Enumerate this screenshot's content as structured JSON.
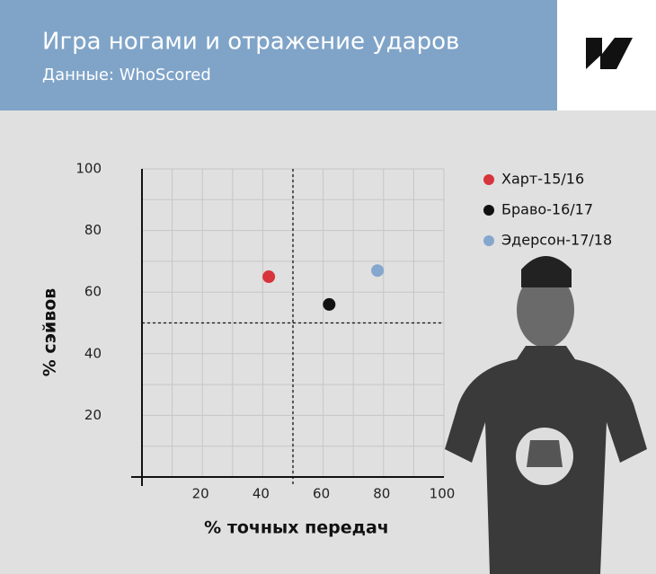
{
  "header": {
    "title": "Игра ногами и отражение ударов",
    "subtitle": "Данные: WhoScored"
  },
  "chart_data": {
    "type": "scatter",
    "x_label": "% точных передач",
    "y_label": "% сэйвов",
    "series": [
      {
        "name": "Харт-15/16",
        "color": "#d7343c",
        "x": [
          42
        ],
        "values": [
          65
        ]
      },
      {
        "name": "Браво-16/17",
        "color": "#111111",
        "x": [
          62
        ],
        "values": [
          56
        ]
      },
      {
        "name": "Эдерсон-17/18",
        "color": "#85a7cd",
        "x": [
          78
        ],
        "values": [
          67
        ]
      }
    ],
    "xlim": [
      0,
      100
    ],
    "ylim": [
      0,
      100
    ],
    "xticks": [
      20,
      40,
      60,
      80,
      100
    ],
    "yticks": [
      20,
      40,
      60,
      80,
      100
    ],
    "xref": 50,
    "yref": 50,
    "grid": true,
    "legend": "right"
  }
}
